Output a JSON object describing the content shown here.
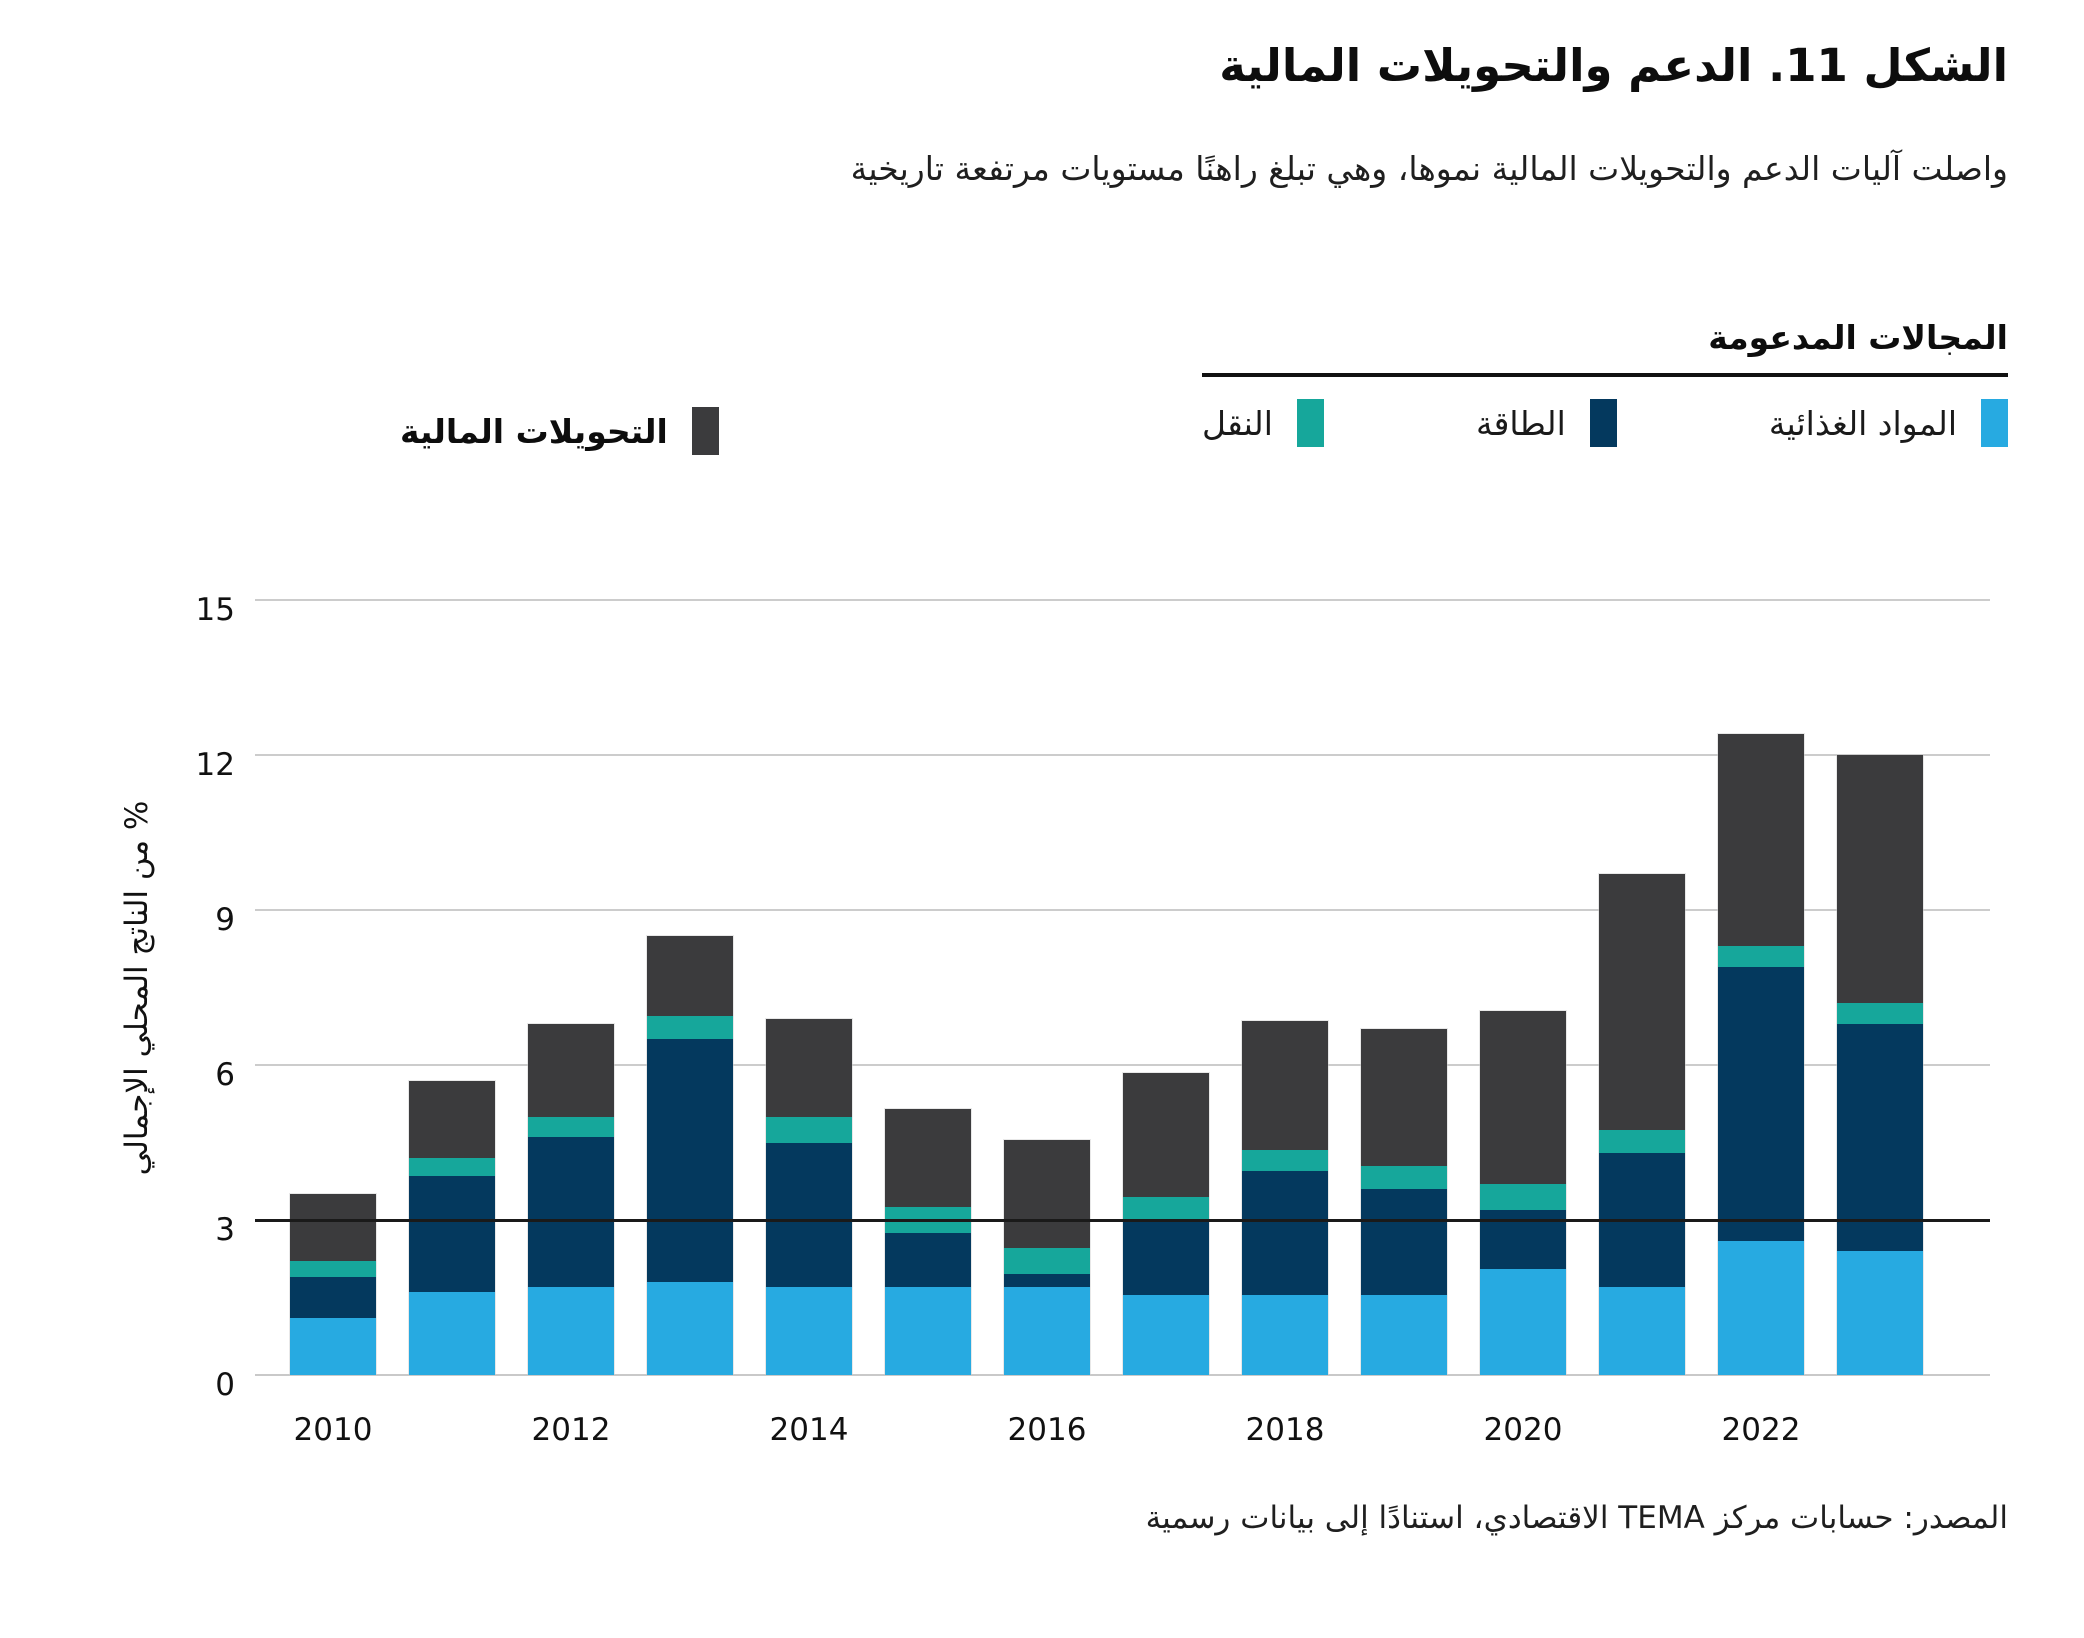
{
  "title": "الشكل 11. الدعم والتحويلات المالية",
  "subtitle": "واصلت آليات الدعم والتحويلات المالية نموها، وهي تبلغ راهنًا مستويات مرتفعة تاريخية",
  "legend": {
    "group_header": "المجالات المدعومة",
    "items": [
      {
        "key": "food",
        "label": "المواد الغذائية",
        "color": "#27AAE1"
      },
      {
        "key": "energy",
        "label": "الطاقة",
        "color": "#04395E"
      },
      {
        "key": "transport",
        "label": "النقل",
        "color": "#16A79B"
      }
    ],
    "standalone_item": {
      "key": "transfers",
      "label": "التحويلات المالية",
      "color": "#3B3B3D"
    }
  },
  "y_axis": {
    "title": "% من الناتج المحلي الإجمالي",
    "ticks": [
      0,
      3,
      6,
      9,
      12,
      15
    ],
    "max": 15
  },
  "x_axis": {
    "tick_labels": [
      "2010",
      "2012",
      "2014",
      "2016",
      "2018",
      "2020",
      "2022"
    ]
  },
  "source": "المصدر: حسابات مركز TEMA الاقتصادي، استنادًا إلى بيانات رسمية",
  "colors": {
    "food": "#27AAE1",
    "energy": "#04395E",
    "transport": "#16A79B",
    "transfers": "#3B3B3D",
    "gridline": "#cccccc",
    "reference_line": "#1a1a1a"
  },
  "chart_data": {
    "type": "bar",
    "stacked": true,
    "title": "الشكل 11. الدعم والتحويلات المالية",
    "xlabel": "",
    "ylabel": "% من الناتج المحلي الإجمالي",
    "ylim": [
      0,
      15
    ],
    "grid": true,
    "reference_line_y": 3,
    "legend_position": "top",
    "categories": [
      2010,
      2011,
      2012,
      2013,
      2014,
      2015,
      2016,
      2017,
      2018,
      2019,
      2020,
      2021,
      2022,
      2023
    ],
    "series": [
      {
        "name": "المواد الغذائية",
        "key": "food",
        "color": "#27AAE1",
        "values": [
          1.1,
          1.6,
          1.7,
          1.8,
          1.7,
          1.7,
          1.7,
          1.55,
          1.55,
          1.55,
          2.05,
          1.7,
          2.6,
          2.4
        ]
      },
      {
        "name": "الطاقة",
        "key": "energy",
        "color": "#04395E",
        "values": [
          0.8,
          2.25,
          2.9,
          4.7,
          2.8,
          1.05,
          0.25,
          1.45,
          2.4,
          2.05,
          1.15,
          2.6,
          5.3,
          4.4
        ]
      },
      {
        "name": "النقل",
        "key": "transport",
        "color": "#16A79B",
        "values": [
          0.3,
          0.35,
          0.4,
          0.45,
          0.5,
          0.5,
          0.5,
          0.45,
          0.4,
          0.45,
          0.5,
          0.45,
          0.4,
          0.4
        ]
      },
      {
        "name": "التحويلات المالية",
        "key": "transfers",
        "color": "#3B3B3D",
        "values": [
          1.3,
          1.5,
          1.8,
          1.55,
          1.9,
          1.9,
          2.1,
          2.4,
          2.5,
          2.65,
          3.35,
          4.95,
          4.1,
          4.8
        ]
      }
    ],
    "totals": [
      3.5,
      5.7,
      6.8,
      8.5,
      6.9,
      5.15,
      4.55,
      5.85,
      6.85,
      6.7,
      7.05,
      9.7,
      12.4,
      12.0
    ]
  }
}
